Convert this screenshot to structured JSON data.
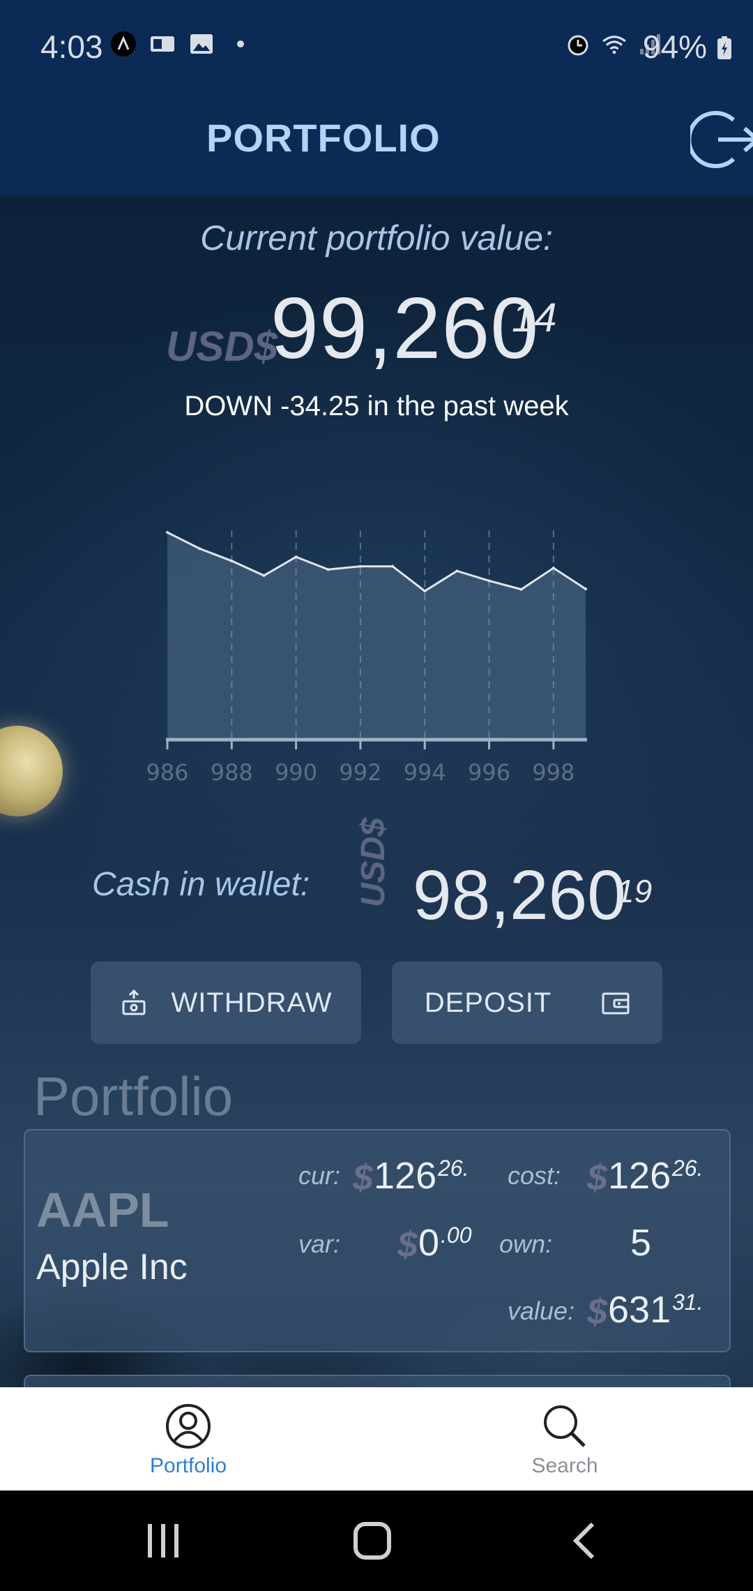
{
  "status_bar": {
    "time": "4:03",
    "battery": "94%",
    "left_icons": [
      "app-icon",
      "outlook-icon",
      "gallery-icon",
      "dot-icon"
    ],
    "right_icons": [
      "alarm-icon",
      "wifi-icon",
      "signal-icon"
    ]
  },
  "header": {
    "title": "PORTFOLIO",
    "logout_icon": "logout-icon"
  },
  "summary": {
    "label": "Current portfolio value:",
    "currency": "USD$",
    "value_int": "99,260",
    "value_dec": "14",
    "change_text": "DOWN -34.25 in the past week"
  },
  "chart_data": {
    "type": "area",
    "x": [
      986,
      987,
      988,
      989,
      990,
      991,
      992,
      993,
      994,
      995,
      996,
      997,
      998,
      999
    ],
    "xticks": [
      "986",
      "988",
      "990",
      "992",
      "994",
      "996",
      "998"
    ],
    "values": [
      99.0,
      91.3,
      85.4,
      78.4,
      87.3,
      81.3,
      82.8,
      82.8,
      71.0,
      80.6,
      75.9,
      71.8,
      82.0,
      72.0
    ],
    "ylim": [
      0,
      100
    ],
    "grid": true,
    "color": "#3b5672"
  },
  "wallet": {
    "label": "Cash in wallet:",
    "currency": "USD$",
    "value_int": "98,260",
    "value_dec": "19"
  },
  "actions": {
    "withdraw_label": "WITHDRAW",
    "deposit_label": "DEPOSIT"
  },
  "portfolio": {
    "section_title": "Portfolio",
    "holdings": [
      {
        "ticker": "AAPL",
        "name": "Apple Inc",
        "cur_label": "cur:",
        "cur_int": "126",
        "cur_dec": "26.",
        "cost_label": "cost:",
        "cost_int": "126",
        "cost_dec": "26.",
        "var_label": "var:",
        "var_int": "0",
        "var_dec": ".00",
        "own_label": "own:",
        "own_value": "5",
        "value_label": "value:",
        "value_int": "631",
        "value_dec": "31.",
        "dollar": "$"
      }
    ]
  },
  "bottom_nav": {
    "items": [
      {
        "label": "Portfolio",
        "icon": "user-icon",
        "active": true
      },
      {
        "label": "Search",
        "icon": "search-icon",
        "active": false
      }
    ]
  },
  "colors": {
    "accent": "#2c7fd6",
    "header_bg": "#0b2a56",
    "button_bg": "#36506d"
  }
}
